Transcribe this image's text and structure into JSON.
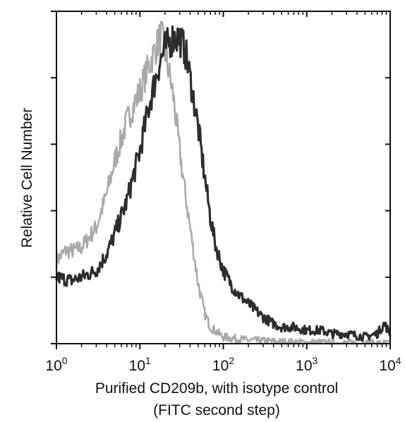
{
  "chart_data": {
    "type": "line",
    "title": "",
    "xlabel": "Purified CD209b, with isotype control",
    "xlabel_line2": "(FITC second step)",
    "ylabel": "Relative Cell Number",
    "x_scale": "log",
    "xlim": [
      1,
      10000
    ],
    "ylim": [
      0,
      100
    ],
    "grid": false,
    "legend": "none",
    "x_ticks": [
      {
        "base": "10",
        "exp": "0",
        "value": 1
      },
      {
        "base": "10",
        "exp": "1",
        "value": 10
      },
      {
        "base": "10",
        "exp": "2",
        "value": 100
      },
      {
        "base": "10",
        "exp": "3",
        "value": 1000
      },
      {
        "base": "10",
        "exp": "4",
        "value": 10000
      }
    ],
    "y_ticks": [
      0,
      20,
      40,
      60,
      80,
      100
    ],
    "series": [
      {
        "color": "#222222",
        "x": [
          1,
          1.5,
          2,
          3,
          4,
          5,
          7,
          10,
          13,
          17,
          20,
          25,
          30,
          35,
          40,
          50,
          60,
          70,
          80,
          100,
          130,
          150,
          200,
          300,
          400,
          500,
          700,
          1000,
          1500,
          2000,
          3000,
          5000,
          7000,
          8500,
          10000
        ],
        "y": [
          20,
          19,
          20,
          22,
          27,
          33,
          43,
          58,
          72,
          84,
          89,
          92,
          92,
          88,
          80,
          65,
          50,
          38,
          30,
          22,
          17,
          15,
          12,
          8,
          6,
          5,
          5,
          4,
          4,
          3,
          3,
          2,
          3,
          6,
          3
        ]
      },
      {
        "color": "#9a9a9a",
        "x": [
          1,
          1.3,
          1.6,
          2,
          3,
          4,
          5,
          7,
          10,
          13,
          15,
          18,
          20,
          25,
          30,
          35,
          40,
          50,
          60,
          70,
          100,
          200,
          500,
          1000,
          2000,
          5000,
          10000
        ],
        "y": [
          25,
          28,
          28,
          29,
          35,
          45,
          55,
          67,
          76,
          84,
          88,
          93,
          88,
          75,
          58,
          45,
          35,
          18,
          9,
          5,
          2,
          1,
          0.5,
          0.3,
          0.2,
          0.1,
          0
        ]
      }
    ]
  }
}
